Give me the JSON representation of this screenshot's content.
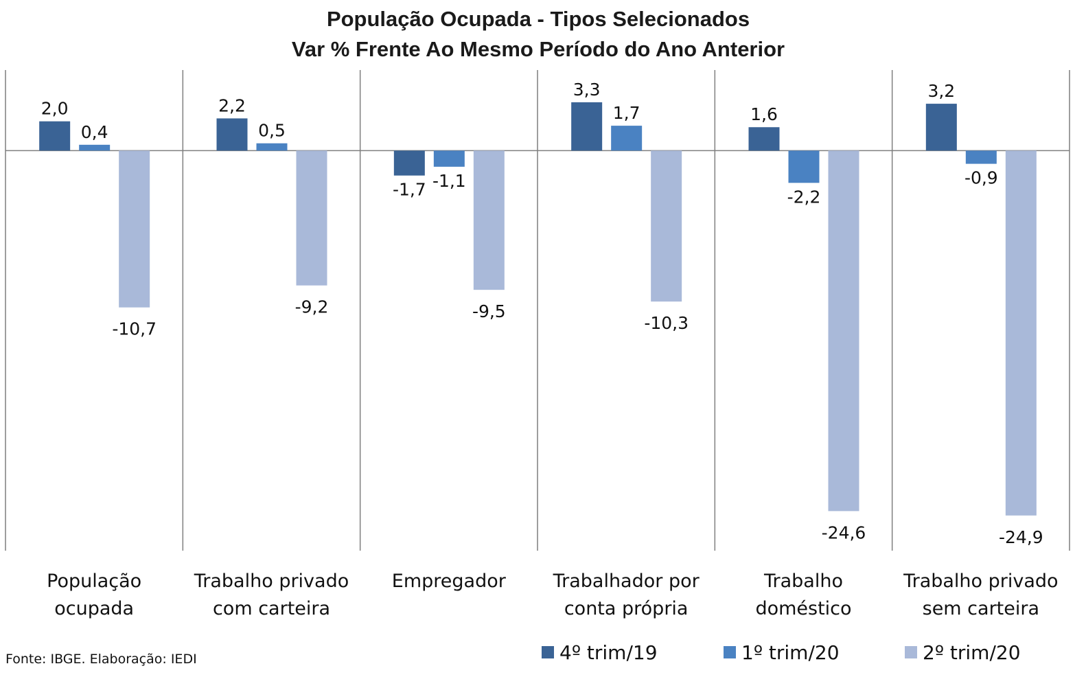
{
  "chart_data": {
    "type": "bar",
    "title": "População Ocupada - Tipos Selecionados",
    "subtitle": "Var % Frente Ao Mesmo Período do Ano Anterior",
    "categories": [
      [
        "População",
        "ocupada"
      ],
      [
        "Trabalho privado",
        "com carteira"
      ],
      [
        "Empregador"
      ],
      [
        "Trabalhador por",
        "conta própria"
      ],
      [
        "Trabalho",
        "doméstico"
      ],
      [
        "Trabalho privado",
        "sem carteira"
      ]
    ],
    "series": [
      {
        "name": "4º trim/19",
        "color": "#3a6395",
        "values": [
          2.0,
          2.2,
          -1.7,
          3.3,
          1.6,
          3.2
        ],
        "labels": [
          "2,0",
          "2,2",
          "-1,7",
          "3,3",
          "1,6",
          "3,2"
        ]
      },
      {
        "name": "1º trim/20",
        "color": "#4a82c2",
        "values": [
          0.4,
          0.5,
          -1.1,
          1.7,
          -2.2,
          -0.9
        ],
        "labels": [
          "0,4",
          "0,5",
          "-1,1",
          "1,7",
          "-2,2",
          "-0,9"
        ]
      },
      {
        "name": "2º trim/20",
        "color": "#a9b9d9",
        "values": [
          -10.7,
          -9.2,
          -9.5,
          -10.3,
          -24.6,
          -24.9
        ],
        "labels": [
          "-10,7",
          "-9,2",
          "-9,5",
          "-10,3",
          "-24,6",
          "-24,9"
        ]
      }
    ],
    "ylim": [
      -27.3,
      5.5
    ],
    "grid": false,
    "legend_position": "bottom-right",
    "source": "Fonte: IBGE. Elaboração: IEDI"
  }
}
